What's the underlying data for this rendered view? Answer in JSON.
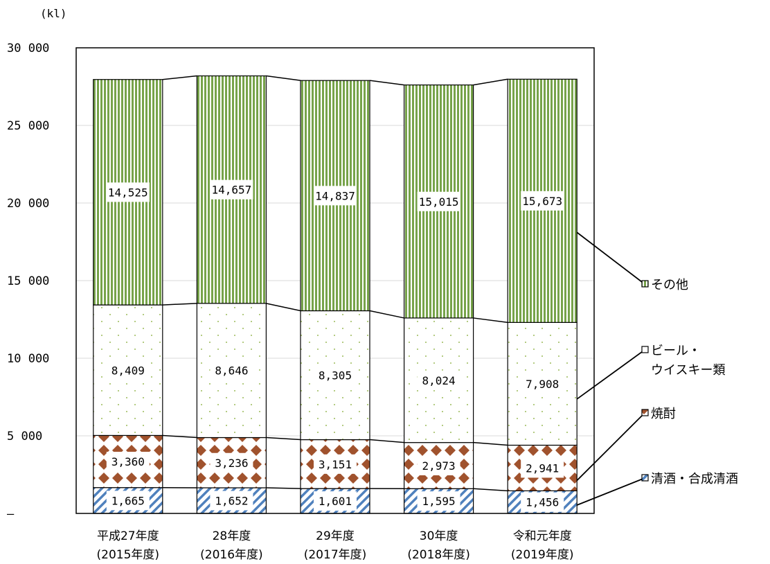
{
  "chart_data": {
    "type": "bar",
    "stacked": true,
    "unit_label": "(kl)",
    "ylim": [
      0,
      30000
    ],
    "y_ticks": [
      "–",
      "5 000",
      "10 000",
      "15 000",
      "20 000",
      "25 000",
      "30 000"
    ],
    "categories": [
      [
        "平成27年度",
        "(2015年度)"
      ],
      [
        "28年度",
        "(2016年度)"
      ],
      [
        "29年度",
        "(2017年度)"
      ],
      [
        "30年度",
        "(2018年度)"
      ],
      [
        "令和元年度",
        "(2019年度)"
      ]
    ],
    "series": [
      {
        "name": "清酒・合成清酒",
        "legend_lines": [
          "清酒・合成清酒"
        ],
        "color": "#4f81bd",
        "values": [
          1665,
          1652,
          1601,
          1595,
          1456
        ],
        "labels": [
          "1,665",
          "1,652",
          "1,601",
          "1,595",
          "1,456"
        ]
      },
      {
        "name": "焼酎",
        "legend_lines": [
          "焼酎"
        ],
        "color": "#a0522d",
        "values": [
          3360,
          3236,
          3151,
          2973,
          2941
        ],
        "labels": [
          "3,360",
          "3,236",
          "3,151",
          "2,973",
          "2,941"
        ]
      },
      {
        "name": "ビール・ウイスキー類",
        "legend_lines": [
          "ビール・",
          "ウイスキー類"
        ],
        "color": "#9bbb59",
        "values": [
          8409,
          8646,
          8305,
          8024,
          7908
        ],
        "labels": [
          "8,409",
          "8,646",
          "8,305",
          "8,024",
          "7,908"
        ]
      },
      {
        "name": "その他",
        "legend_lines": [
          "その他"
        ],
        "color": "#77a34a",
        "values": [
          14525,
          14657,
          14837,
          15015,
          15673
        ],
        "labels": [
          "14,525",
          "14,657",
          "14,837",
          "15,015",
          "15,673"
        ]
      }
    ],
    "grid": true,
    "legend_position": "right"
  }
}
